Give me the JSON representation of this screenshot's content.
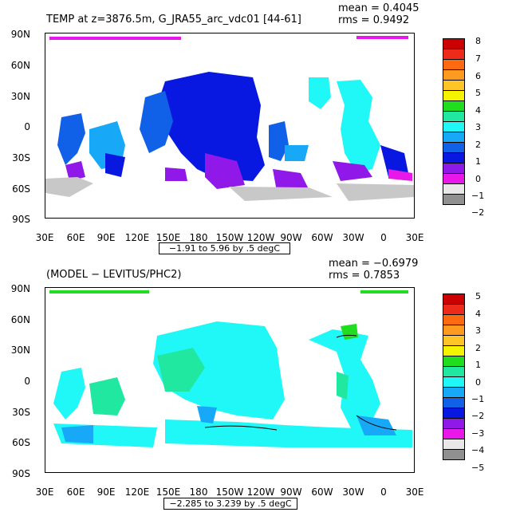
{
  "panel1": {
    "title": "TEMP at z=3876.5m, G_JRA55_arc_vdc01 [44-61]",
    "mean": "mean = 0.4045",
    "rms": "rms = 0.9492",
    "range_label": "−1.91 to 5.96 by .5 degC",
    "lat_labels": [
      "90N",
      "60N",
      "30N",
      "0",
      "30S",
      "60S",
      "90S"
    ],
    "lon_labels": [
      "30E",
      "60E",
      "90E",
      "120E",
      "150E",
      "180",
      "150W",
      "120W",
      "90W",
      "60W",
      "30W",
      "0",
      "30E"
    ],
    "colorbar": {
      "labels": [
        "8",
        "7",
        "6",
        "5",
        "4",
        "3",
        "2",
        "1",
        "0",
        "−1",
        "−2"
      ],
      "colors": [
        "#cc0000",
        "#ee2a1a",
        "#ff6a10",
        "#ff9a20",
        "#ffc428",
        "#f4f400",
        "#20dd20",
        "#20e8a0",
        "#20f8f8",
        "#18a8f8",
        "#1060e8",
        "#0818e0",
        "#9018e8",
        "#e818e8",
        "#e8e8e8",
        "#909090"
      ]
    }
  },
  "panel2": {
    "title": "(MODEL − LEVITUS/PHC2)",
    "mean": "mean = −0.6979",
    "rms": "rms = 0.7853",
    "range_label": "−2.285 to 3.239 by .5 degC",
    "lat_labels": [
      "90N",
      "60N",
      "30N",
      "0",
      "30S",
      "60S",
      "90S"
    ],
    "lon_labels": [
      "30E",
      "60E",
      "90E",
      "120E",
      "150E",
      "180",
      "150W",
      "120W",
      "90W",
      "60W",
      "30W",
      "0",
      "30E"
    ],
    "colorbar": {
      "labels": [
        "5",
        "4",
        "3",
        "2",
        "1",
        "0",
        "−1",
        "−2",
        "−3",
        "−4",
        "−5"
      ],
      "colors": [
        "#cc0000",
        "#ee2a1a",
        "#ff6a10",
        "#ff9a20",
        "#ffc428",
        "#f4f400",
        "#20dd20",
        "#20e8a0",
        "#20f8f8",
        "#18a8f8",
        "#1060e8",
        "#0818e0",
        "#9018e8",
        "#e818e8",
        "#e8e8e8",
        "#909090"
      ]
    }
  }
}
